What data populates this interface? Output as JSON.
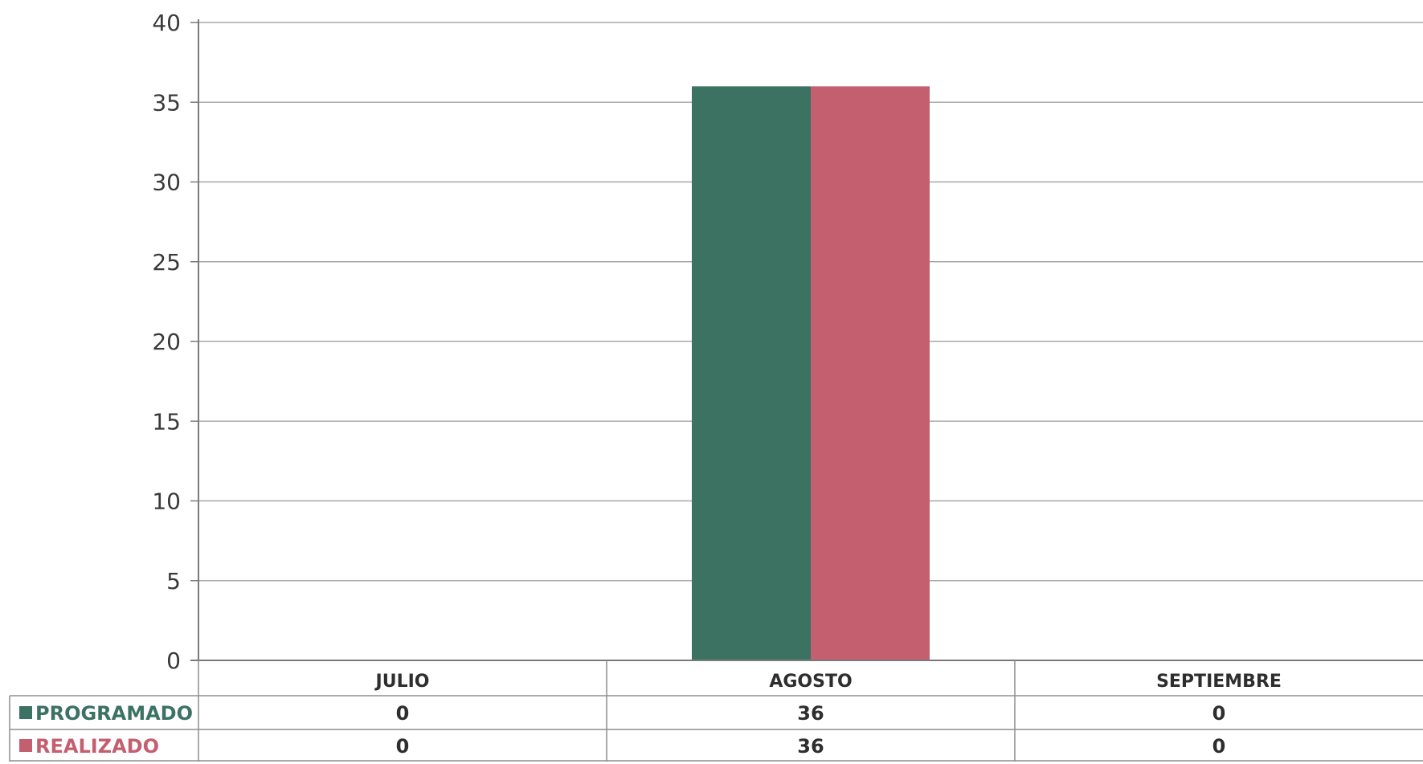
{
  "chart_data": {
    "type": "bar",
    "categories": [
      "JULIO",
      "AGOSTO",
      "SEPTIEMBRE"
    ],
    "series": [
      {
        "name": "PROGRAMADO",
        "values": [
          0,
          36,
          0
        ],
        "color": "#3b7262",
        "display": [
          "0",
          "36",
          "0"
        ]
      },
      {
        "name": "REALIZADO",
        "values": [
          0,
          36,
          0
        ],
        "color": "#c45f70",
        "display": [
          "0",
          "36",
          "0"
        ]
      }
    ],
    "ylim": [
      0,
      40
    ],
    "yticks": [
      "0",
      "5",
      "10",
      "15",
      "20",
      "25",
      "30",
      "35",
      "40"
    ],
    "title": "",
    "xlabel": "",
    "ylabel": "",
    "grid": true,
    "legend": "data-table-left"
  }
}
